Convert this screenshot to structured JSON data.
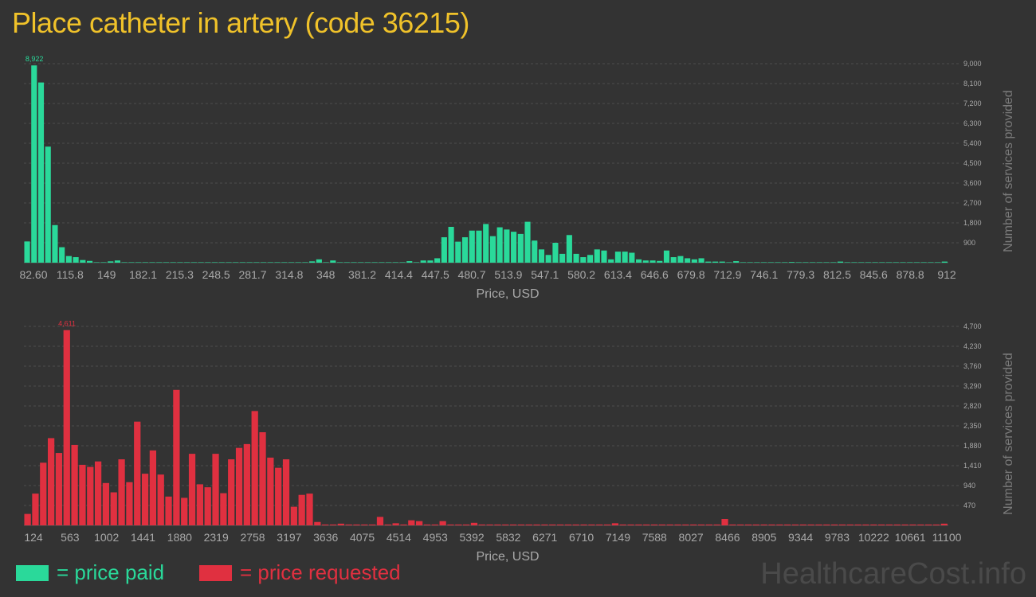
{
  "title": "Place catheter in artery (code 36215)",
  "watermark": "HealthcareCost.info",
  "legend": {
    "paid_label": "= price paid",
    "requested_label": "= price requested",
    "paid_color": "#2ad99a",
    "requested_color": "#e03040"
  },
  "chart_data": [
    {
      "type": "bar",
      "name": "price-paid",
      "color": "#2ad99a",
      "xlabel": "Price, USD",
      "ylabel": "Number of services provided",
      "x_tick_labels": [
        "82.60",
        "115.8",
        "149",
        "182.1",
        "215.3",
        "248.5",
        "281.7",
        "314.8",
        "348",
        "381.2",
        "414.4",
        "447.5",
        "480.7",
        "513.9",
        "547.1",
        "580.2",
        "613.4",
        "646.6",
        "679.8",
        "712.9",
        "746.1",
        "779.3",
        "812.5",
        "845.6",
        "878.8",
        "912"
      ],
      "x_range": [
        82.6,
        912
      ],
      "y_ticks": [
        900,
        1800,
        2700,
        3600,
        4500,
        5400,
        6300,
        7200,
        8100,
        9000
      ],
      "y_tick_labels": [
        "900",
        "1,800",
        "2,700",
        "3,600",
        "4,500",
        "5,400",
        "6,300",
        "7,200",
        "8,100",
        "9,000"
      ],
      "ylim": [
        0,
        9000
      ],
      "peak_label": "8,922",
      "grid": true,
      "values": [
        960,
        8922,
        8150,
        5250,
        1700,
        700,
        300,
        250,
        120,
        80,
        20,
        20,
        60,
        100,
        20,
        20,
        20,
        20,
        20,
        20,
        20,
        20,
        20,
        20,
        20,
        20,
        20,
        20,
        20,
        20,
        20,
        20,
        20,
        20,
        20,
        20,
        20,
        20,
        20,
        20,
        20,
        60,
        150,
        20,
        100,
        20,
        20,
        20,
        20,
        20,
        20,
        20,
        20,
        20,
        20,
        70,
        20,
        100,
        100,
        200,
        1150,
        1620,
        950,
        1150,
        1450,
        1450,
        1750,
        1200,
        1600,
        1500,
        1400,
        1300,
        1850,
        1000,
        600,
        350,
        900,
        400,
        1250,
        400,
        250,
        350,
        600,
        550,
        150,
        500,
        500,
        450,
        150,
        100,
        100,
        80,
        550,
        250,
        300,
        200,
        150,
        200,
        50,
        50,
        50,
        20,
        70,
        20,
        20,
        20,
        20,
        20,
        20,
        20,
        30,
        20,
        20,
        20,
        20,
        20,
        20,
        50,
        20,
        20,
        20,
        20,
        20,
        20,
        20,
        20,
        20,
        20,
        20,
        20,
        20,
        20,
        50
      ]
    },
    {
      "type": "bar",
      "name": "price-requested",
      "color": "#e03040",
      "xlabel": "Price, USD",
      "ylabel": "Number of services provided",
      "x_tick_labels": [
        "124",
        "563",
        "1002",
        "1441",
        "1880",
        "2319",
        "2758",
        "3197",
        "3636",
        "4075",
        "4514",
        "4953",
        "5392",
        "5832",
        "6271",
        "6710",
        "7149",
        "7588",
        "8027",
        "8466",
        "8905",
        "9344",
        "9783",
        "10222",
        "10661",
        "11100"
      ],
      "x_range": [
        124,
        11100
      ],
      "y_ticks": [
        470,
        940,
        1410,
        1880,
        2350,
        2820,
        3290,
        3760,
        4230,
        4700
      ],
      "y_tick_labels": [
        "470",
        "940",
        "1,410",
        "1,880",
        "2,350",
        "2,820",
        "3,290",
        "3,760",
        "4,230",
        "4,700"
      ],
      "ylim": [
        0,
        4700
      ],
      "peak_label": "4,611",
      "grid": true,
      "values": [
        270,
        750,
        1480,
        2060,
        1710,
        4611,
        1900,
        1430,
        1380,
        1510,
        1000,
        780,
        1560,
        1020,
        2450,
        1220,
        1770,
        1200,
        680,
        3200,
        650,
        1690,
        970,
        900,
        1690,
        760,
        1560,
        1830,
        1920,
        2700,
        2200,
        1600,
        1360,
        1560,
        440,
        720,
        750,
        80,
        20,
        20,
        40,
        20,
        20,
        20,
        20,
        200,
        20,
        50,
        20,
        120,
        100,
        20,
        20,
        100,
        20,
        20,
        20,
        60,
        20,
        20,
        20,
        20,
        20,
        20,
        20,
        20,
        20,
        20,
        20,
        20,
        20,
        20,
        20,
        20,
        20,
        50,
        20,
        20,
        20,
        20,
        20,
        20,
        20,
        20,
        20,
        20,
        20,
        20,
        20,
        150,
        20,
        20,
        20,
        20,
        20,
        20,
        20,
        20,
        20,
        20,
        20,
        20,
        20,
        20,
        20,
        20,
        20,
        20,
        20,
        20,
        20,
        20,
        20,
        20,
        20,
        20,
        20,
        40
      ]
    }
  ]
}
